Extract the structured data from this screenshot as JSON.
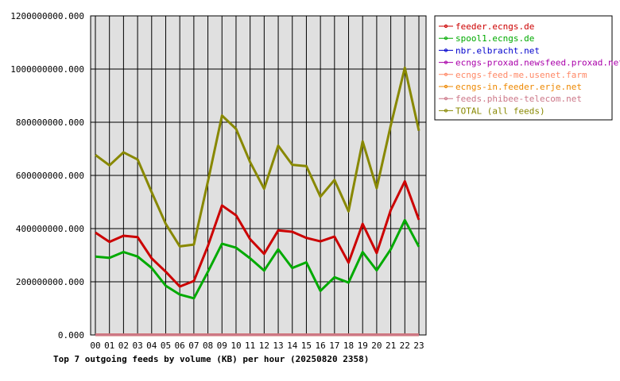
{
  "chart_data": {
    "type": "line",
    "title": "Top 7 outgoing feeds by volume (KB) per hour (20250820 2358)",
    "xlabel": "",
    "ylabel": "",
    "categories": [
      "00",
      "01",
      "02",
      "03",
      "04",
      "05",
      "06",
      "07",
      "08",
      "09",
      "10",
      "11",
      "12",
      "13",
      "14",
      "15",
      "16",
      "17",
      "18",
      "19",
      "20",
      "21",
      "22",
      "23"
    ],
    "ylim": [
      0,
      1200000000
    ],
    "yticks": [
      0,
      200000000,
      400000000,
      600000000,
      800000000,
      1000000000,
      1200000000
    ],
    "ytick_labels": [
      "0.000",
      "200000000.000",
      "400000000.000",
      "600000000.000",
      "800000000.000",
      "1000000000.000",
      "1200000000.000"
    ],
    "grid": true,
    "legend_position": "top-right",
    "series": [
      {
        "name": "feeder.ecngs.de",
        "color": "#cc0000",
        "values": [
          385000000,
          350000000,
          373000000,
          368000000,
          288000000,
          238000000,
          182000000,
          203000000,
          335000000,
          487000000,
          450000000,
          360000000,
          305000000,
          393000000,
          388000000,
          365000000,
          352000000,
          370000000,
          272000000,
          418000000,
          308000000,
          470000000,
          578000000,
          433000000
        ]
      },
      {
        "name": "spool1.ecngs.de",
        "color": "#00aa00",
        "values": [
          295000000,
          290000000,
          312000000,
          295000000,
          252000000,
          185000000,
          152000000,
          138000000,
          238000000,
          343000000,
          328000000,
          288000000,
          242000000,
          322000000,
          252000000,
          273000000,
          166000000,
          217000000,
          197000000,
          312000000,
          243000000,
          322000000,
          432000000,
          332000000
        ]
      },
      {
        "name": "nbr.elbracht.net",
        "color": "#0000cc",
        "values": [
          1000000,
          1000000,
          1000000,
          1000000,
          1000000,
          1000000,
          1000000,
          1000000,
          1000000,
          1000000,
          1000000,
          1000000,
          1000000,
          1000000,
          1000000,
          1000000,
          1000000,
          1000000,
          1000000,
          1000000,
          1000000,
          1000000,
          1000000,
          1000000
        ]
      },
      {
        "name": "ecngs-proxad.newsfeed.proxad.net",
        "color": "#aa00aa",
        "values": [
          1000000,
          1000000,
          1000000,
          1000000,
          1000000,
          1000000,
          1000000,
          1000000,
          1000000,
          1000000,
          1000000,
          1000000,
          1000000,
          1000000,
          1000000,
          1000000,
          1000000,
          1000000,
          1000000,
          1000000,
          1000000,
          1000000,
          1000000,
          1000000
        ]
      },
      {
        "name": "ecngs-feed-me.usenet.farm",
        "color": "#ff8866",
        "values": [
          1000000,
          1000000,
          1000000,
          1000000,
          1000000,
          1000000,
          1000000,
          1000000,
          1000000,
          1000000,
          1000000,
          1000000,
          1000000,
          1000000,
          1000000,
          1000000,
          1000000,
          1000000,
          1000000,
          1000000,
          1000000,
          1000000,
          1000000,
          1000000
        ]
      },
      {
        "name": "ecngs-in.feeder.erje.net",
        "color": "#ee8800",
        "values": [
          1000000,
          1000000,
          1000000,
          1000000,
          1000000,
          1000000,
          1000000,
          1000000,
          1000000,
          1000000,
          1000000,
          1000000,
          1000000,
          1000000,
          1000000,
          1000000,
          1000000,
          1000000,
          1000000,
          1000000,
          1000000,
          1000000,
          1000000,
          1000000
        ]
      },
      {
        "name": "feeds.phibee-telecom.net",
        "color": "#cc7788",
        "values": [
          1000000,
          1000000,
          1000000,
          1000000,
          1000000,
          1000000,
          1000000,
          1000000,
          1000000,
          1000000,
          1000000,
          1000000,
          1000000,
          1000000,
          1000000,
          1000000,
          1000000,
          1000000,
          1000000,
          1000000,
          1000000,
          1000000,
          1000000,
          1000000
        ]
      },
      {
        "name": "TOTAL (all feeds)",
        "color": "#888800",
        "values": [
          677000000,
          638000000,
          687000000,
          660000000,
          537000000,
          418000000,
          333000000,
          340000000,
          578000000,
          825000000,
          775000000,
          650000000,
          550000000,
          712000000,
          640000000,
          635000000,
          520000000,
          583000000,
          465000000,
          728000000,
          552000000,
          788000000,
          1005000000,
          768000000
        ]
      }
    ]
  }
}
